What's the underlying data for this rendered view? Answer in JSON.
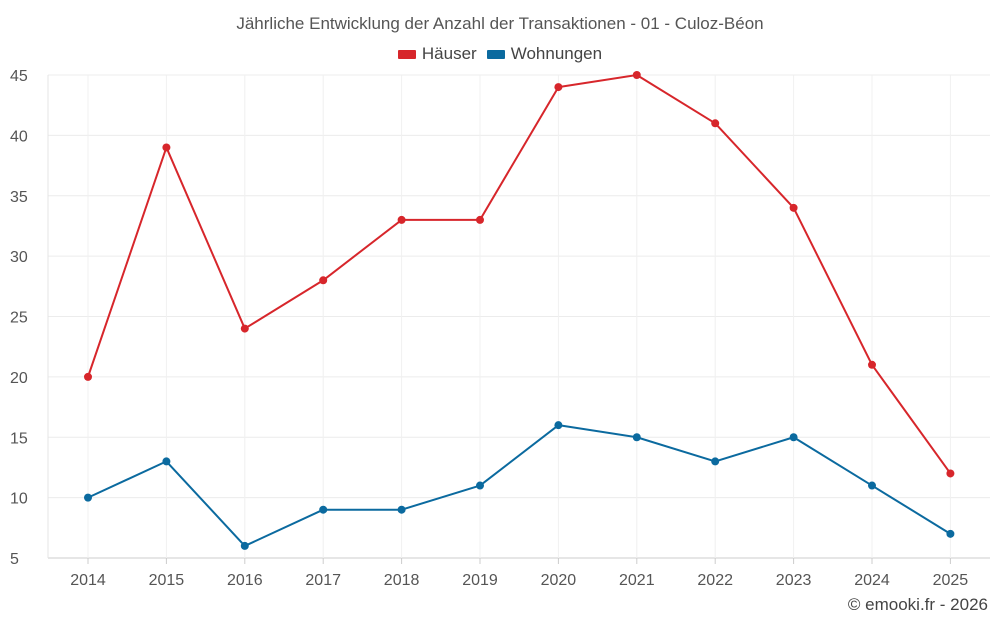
{
  "chart_data": {
    "type": "line",
    "title": "Jährliche Entwicklung der Anzahl der Transaktionen - 01 - Culoz-Béon",
    "categories": [
      "2014",
      "2015",
      "2016",
      "2017",
      "2018",
      "2019",
      "2020",
      "2021",
      "2022",
      "2023",
      "2024",
      "2025"
    ],
    "series": [
      {
        "name": "Häuser",
        "color": "#d7262b",
        "values": [
          20,
          39,
          24,
          28,
          33,
          33,
          44,
          45,
          41,
          34,
          21,
          12
        ]
      },
      {
        "name": "Wohnungen",
        "color": "#0b6a9f",
        "values": [
          10,
          13,
          6,
          9,
          9,
          11,
          16,
          15,
          13,
          15,
          11,
          7
        ]
      }
    ],
    "ylim": [
      5,
      45
    ],
    "yticks": [
      5,
      10,
      15,
      20,
      25,
      30,
      35,
      40,
      45
    ],
    "xlabel": "",
    "ylabel": "",
    "grid": true,
    "legend": "top-center"
  },
  "credit": "© emooki.fr - 2026"
}
